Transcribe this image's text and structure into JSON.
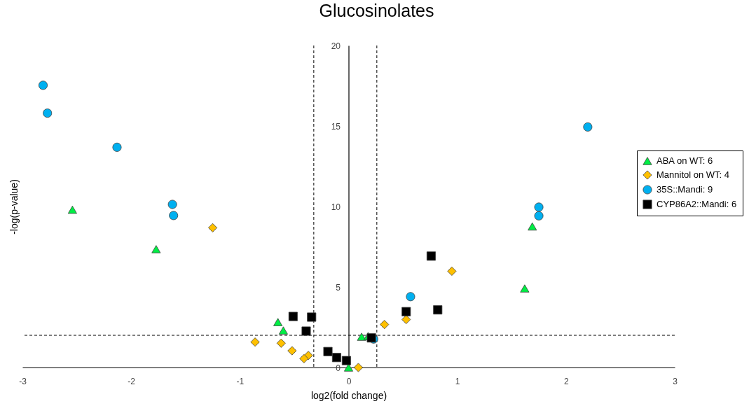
{
  "chart_data": {
    "type": "scatter",
    "title": "Glucosinolates",
    "xlabel": "log2(fold change)",
    "ylabel": "-log(p-value)",
    "xlim": [
      -3,
      3
    ],
    "xticks": [
      -3,
      -2,
      -1,
      0,
      1,
      2,
      3
    ],
    "ylim": [
      0,
      20
    ],
    "yticks": [
      0,
      5,
      10,
      15,
      20
    ],
    "legend": "right",
    "ref_lines": [
      {
        "axis": "x",
        "value": -0.32,
        "color": "#000000",
        "line_style": "dashed"
      },
      {
        "axis": "x",
        "value": 0.26,
        "color": "#000000",
        "line_style": "dashed"
      },
      {
        "axis": "y",
        "value": 2,
        "color": "#000000",
        "line_style": "dashed"
      }
    ],
    "series": [
      {
        "name": "ABA on WT: 6",
        "color": "#00ee44",
        "marker": "triangle",
        "x": [
          -2.54,
          -1.77,
          -0.65,
          -0.6,
          0.12,
          0.18,
          0.0,
          1.69,
          1.62
        ],
        "values": [
          9.8,
          7.35,
          2.82,
          2.3,
          1.91,
          1.95,
          0,
          8.76,
          4.91
        ]
      },
      {
        "name": "Mannitol on WT: 4",
        "color": "#ffc000",
        "marker": "diamond",
        "x": [
          -1.25,
          0.95,
          0.53,
          0.33,
          -0.86,
          -0.62,
          -0.52,
          -0.37,
          -0.41,
          0.09
        ],
        "values": [
          8.68,
          5.98,
          2.98,
          2.67,
          1.58,
          1.51,
          1.04,
          0.75,
          0.55,
          0
        ]
      },
      {
        "name": "35S::Mandi: 9",
        "color": "#00b0f0",
        "marker": "circle",
        "x": [
          -2.81,
          -2.77,
          -2.13,
          -1.62,
          -1.61,
          2.2,
          1.75,
          1.75,
          0.57,
          0.23
        ],
        "values": [
          17.53,
          15.8,
          13.68,
          10.13,
          9.44,
          14.94,
          9.96,
          9.42,
          4.4,
          1.77
        ]
      },
      {
        "name": "CYP86A2::Mandi: 6",
        "color": "#000000",
        "marker": "square",
        "x": [
          0.76,
          0.82,
          0.53,
          -0.51,
          -0.34,
          -0.39,
          0.21,
          -0.19,
          -0.11,
          -0.02
        ],
        "values": [
          6.92,
          3.58,
          3.47,
          3.17,
          3.13,
          2.26,
          1.84,
          0.99,
          0.62,
          0.43
        ]
      }
    ]
  }
}
